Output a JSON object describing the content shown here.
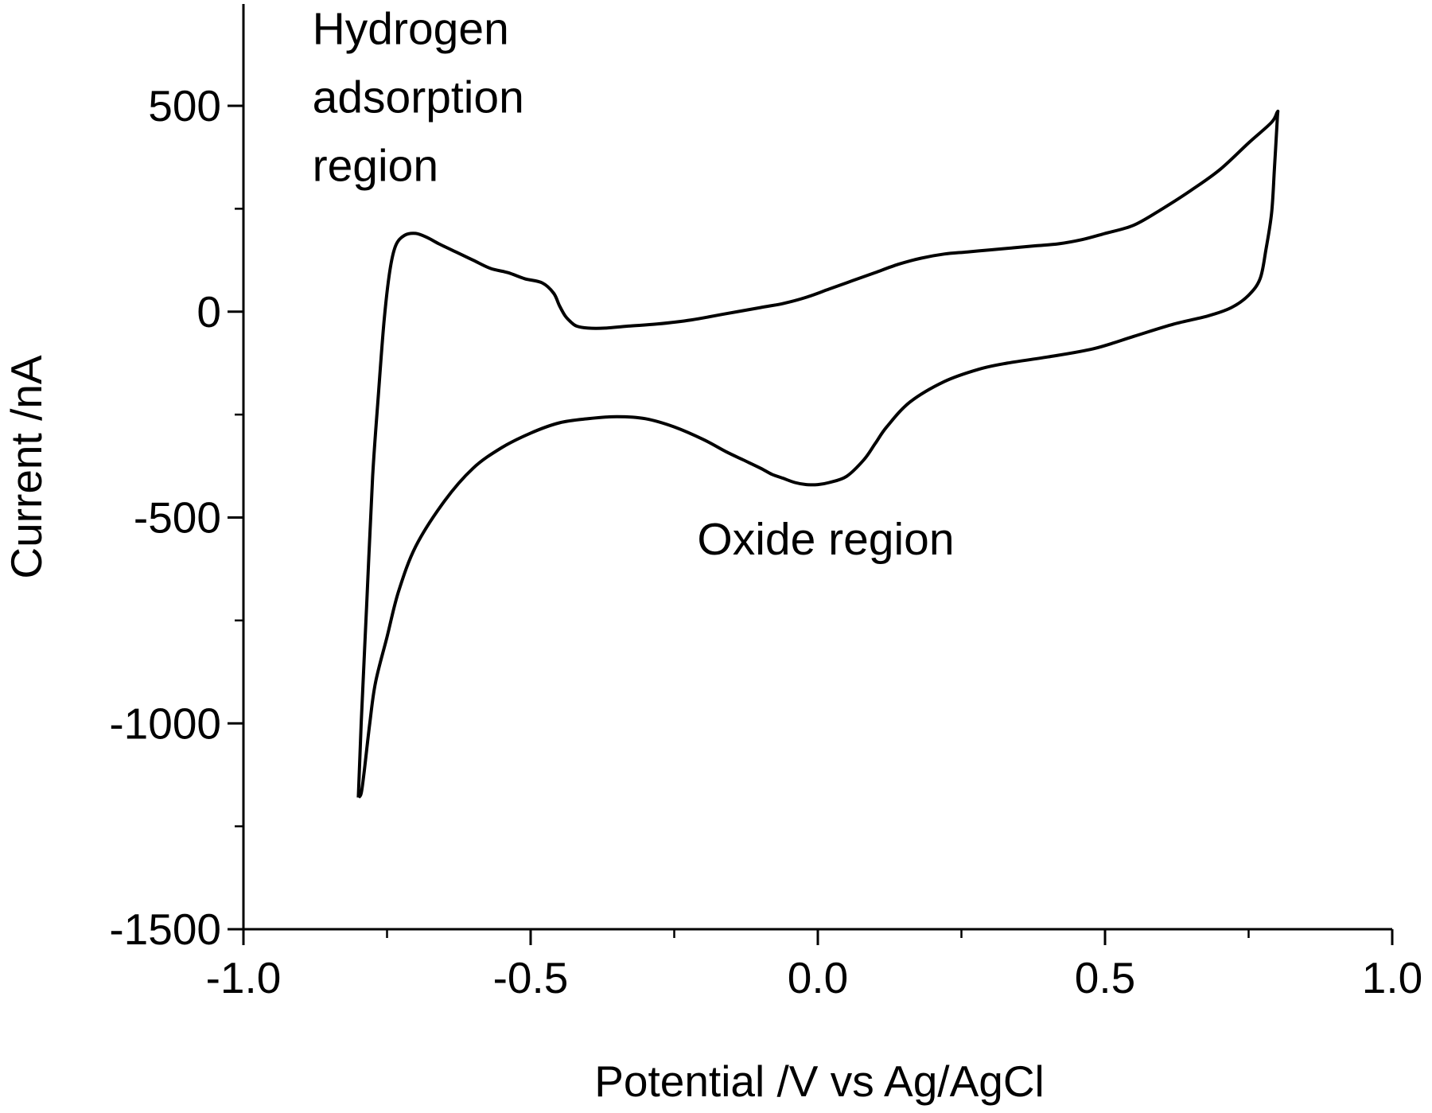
{
  "chart_data": {
    "type": "line",
    "title": "",
    "xlabel": "Potential /V vs Ag/AgCl",
    "ylabel": "Current /nA",
    "xlim": [
      -1.0,
      1.0
    ],
    "ylim": [
      -1500,
      750
    ],
    "xticks": [
      -1.0,
      -0.5,
      0.0,
      0.5,
      1.0
    ],
    "xtick_labels": [
      "-1.0",
      "-0.5",
      "0.0",
      "0.5",
      "1.0"
    ],
    "yticks": [
      -1500,
      -1000,
      -500,
      0,
      500
    ],
    "ytick_labels": [
      "-1500",
      "-1000",
      "-500",
      "0",
      "500"
    ],
    "grid": false,
    "legend": "none",
    "annotations": [
      {
        "lines": [
          "Hydrogen",
          "adsorption",
          "region"
        ],
        "anchor": [
          -0.88,
          650
        ]
      },
      {
        "lines": [
          "Oxide region"
        ],
        "anchor": [
          -0.21,
          -590
        ]
      }
    ],
    "series": [
      {
        "x": [
          -0.8,
          -0.795,
          -0.785,
          -0.775,
          -0.765,
          -0.755,
          -0.745,
          -0.735,
          -0.72,
          -0.7,
          -0.68,
          -0.66,
          -0.63,
          -0.6,
          -0.57,
          -0.54,
          -0.51,
          -0.48,
          -0.46,
          -0.45,
          -0.44,
          -0.43,
          -0.42,
          -0.4,
          -0.37,
          -0.33,
          -0.28,
          -0.22,
          -0.16,
          -0.1,
          -0.06,
          -0.02,
          0.02,
          0.06,
          0.1,
          0.14,
          0.18,
          0.22,
          0.26,
          0.3,
          0.34,
          0.38,
          0.42,
          0.46,
          0.5,
          0.55,
          0.6,
          0.65,
          0.7,
          0.75,
          0.79,
          0.8,
          0.8,
          0.795,
          0.79,
          0.78,
          0.77,
          0.75,
          0.72,
          0.68,
          0.62,
          0.55,
          0.48,
          0.4,
          0.33,
          0.28,
          0.22,
          0.16,
          0.12,
          0.1,
          0.08,
          0.05,
          0.02,
          0.0,
          -0.02,
          -0.04,
          -0.06,
          -0.08,
          -0.1,
          -0.13,
          -0.16,
          -0.2,
          -0.25,
          -0.3,
          -0.35,
          -0.4,
          -0.45,
          -0.5,
          -0.55,
          -0.6,
          -0.65,
          -0.7,
          -0.73,
          -0.75,
          -0.77,
          -0.78,
          -0.79,
          -0.795,
          -0.8
        ],
        "y": [
          -1180,
          -1000,
          -700,
          -400,
          -200,
          -20,
          100,
          160,
          185,
          190,
          180,
          165,
          145,
          125,
          105,
          95,
          80,
          70,
          45,
          15,
          -10,
          -25,
          -35,
          -40,
          -40,
          -35,
          -30,
          -20,
          -5,
          10,
          20,
          35,
          55,
          75,
          95,
          115,
          130,
          140,
          145,
          150,
          155,
          160,
          165,
          175,
          190,
          210,
          250,
          295,
          345,
          410,
          460,
          485,
          470,
          350,
          240,
          150,
          80,
          40,
          10,
          -10,
          -30,
          -60,
          -90,
          -110,
          -125,
          -140,
          -170,
          -220,
          -280,
          -320,
          -360,
          -400,
          -415,
          -420,
          -420,
          -415,
          -405,
          -395,
          -380,
          -360,
          -340,
          -310,
          -280,
          -260,
          -255,
          -260,
          -270,
          -295,
          -330,
          -380,
          -460,
          -570,
          -680,
          -790,
          -900,
          -1000,
          -1120,
          -1170,
          -1180
        ]
      }
    ]
  }
}
